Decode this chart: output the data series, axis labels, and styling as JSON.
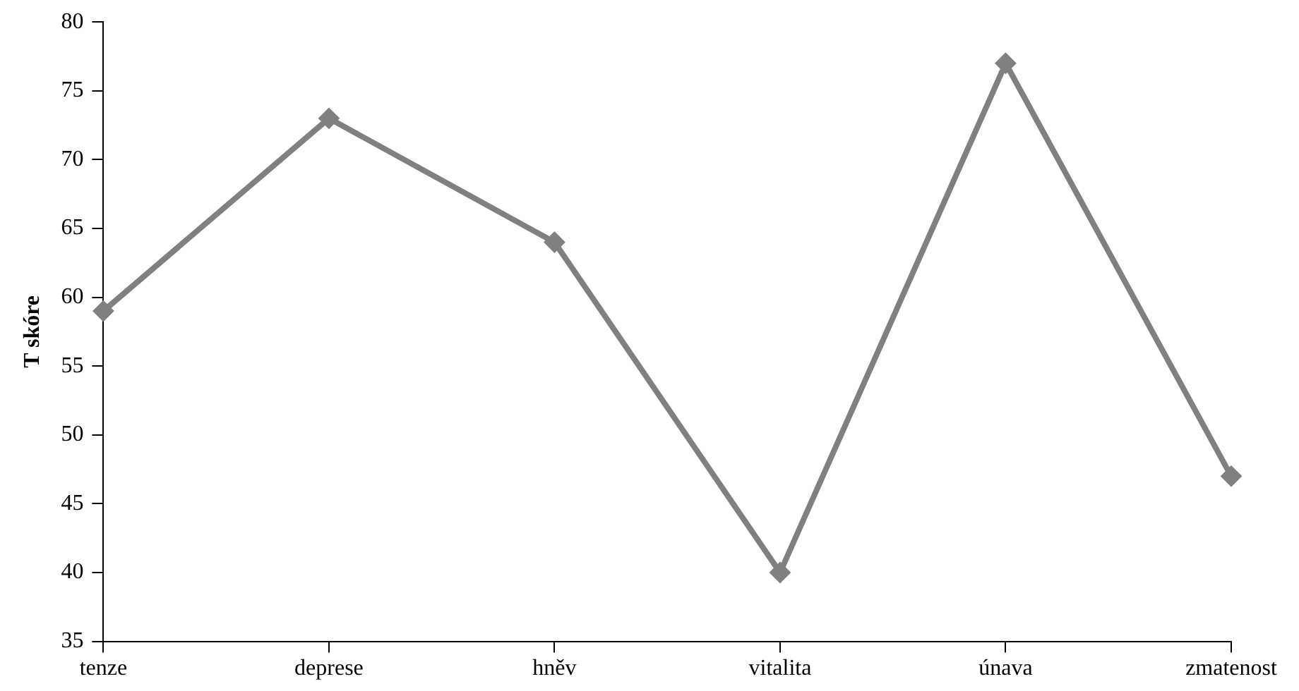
{
  "chart_data": {
    "type": "line",
    "ylabel": "T skóre",
    "categories": [
      "tenze",
      "deprese",
      "hněv",
      "vitalita",
      "únava",
      "zmatenost"
    ],
    "series": [
      {
        "color": "#808080",
        "values": [
          59,
          73,
          64,
          40,
          77,
          47
        ]
      }
    ],
    "ylim": [
      35,
      80
    ],
    "yticks": [
      35,
      40,
      45,
      50,
      55,
      60,
      65,
      70,
      75,
      80
    ],
    "marker": "diamond",
    "line_style": "solid",
    "legend": false
  }
}
